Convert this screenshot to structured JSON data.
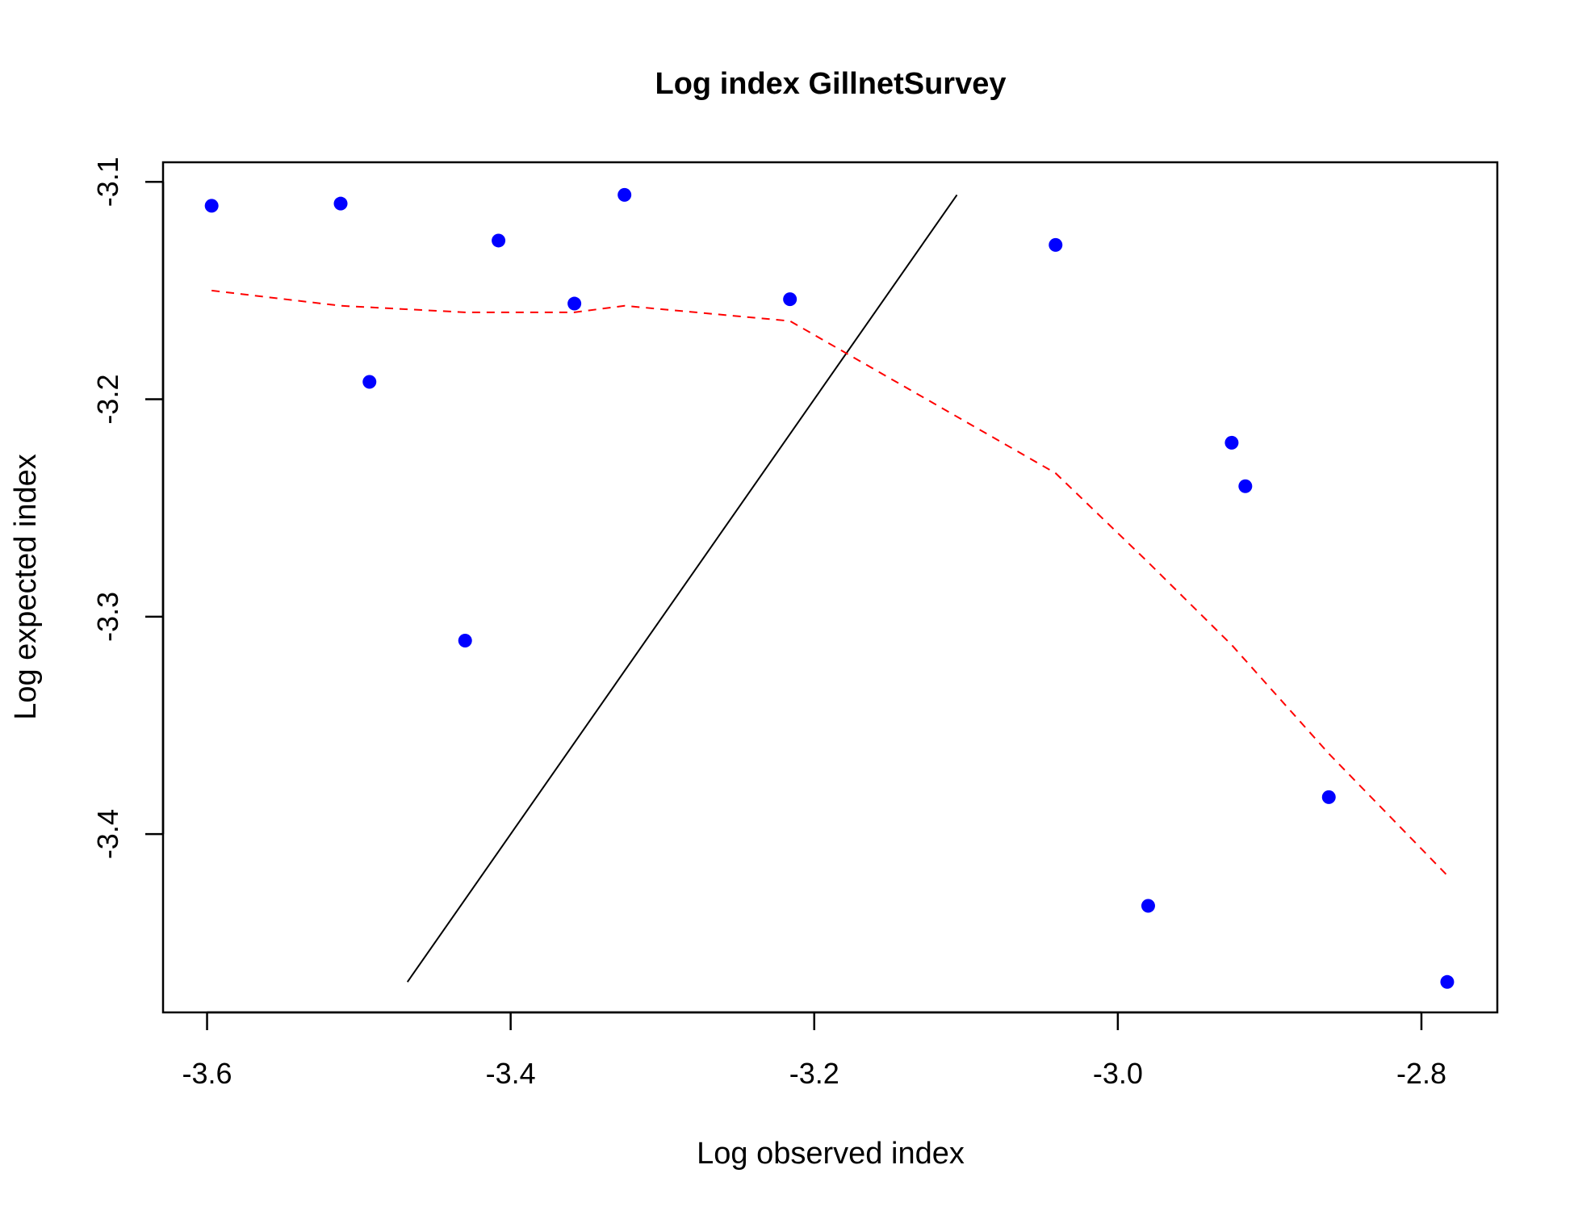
{
  "chart_data": {
    "type": "scatter",
    "title": "Log index GillnetSurvey",
    "xlabel": "Log observed index",
    "ylabel": "Log expected index",
    "xlim": [
      -3.629,
      -2.75
    ],
    "ylim": [
      -3.482,
      -3.091
    ],
    "xticks": [
      -3.6,
      -3.4,
      -3.2,
      -3.0,
      -2.8
    ],
    "yticks": [
      -3.1,
      -3.2,
      -3.3,
      -3.4
    ],
    "xtick_labels": [
      "-3.6",
      "-3.4",
      "-3.2",
      "-3.0",
      "-2.8"
    ],
    "ytick_labels": [
      "-3.1",
      "-3.2",
      "-3.3",
      "-3.4"
    ],
    "grid": false,
    "points": {
      "color": "#0000ff",
      "x": [
        -3.597,
        -3.512,
        -3.493,
        -3.43,
        -3.408,
        -3.358,
        -3.325,
        -3.216,
        -3.041,
        -2.98,
        -2.925,
        -2.916,
        -2.861,
        -2.783
      ],
      "y": [
        -3.111,
        -3.11,
        -3.192,
        -3.311,
        -3.127,
        -3.156,
        -3.106,
        -3.154,
        -3.129,
        -3.433,
        -3.22,
        -3.24,
        -3.383,
        -3.468
      ]
    },
    "reference_line": {
      "color": "#000000",
      "x": [
        -3.468,
        -3.106
      ],
      "y": [
        -3.468,
        -3.106
      ]
    },
    "smooth_line": {
      "color": "#ff0000",
      "style": "dashed",
      "x": [
        -3.597,
        -3.512,
        -3.43,
        -3.358,
        -3.325,
        -3.216,
        -3.041,
        -2.98,
        -2.925,
        -2.861,
        -2.783
      ],
      "y": [
        -3.15,
        -3.157,
        -3.16,
        -3.16,
        -3.157,
        -3.164,
        -3.234,
        -3.275,
        -3.313,
        -3.363,
        -3.419
      ]
    }
  }
}
